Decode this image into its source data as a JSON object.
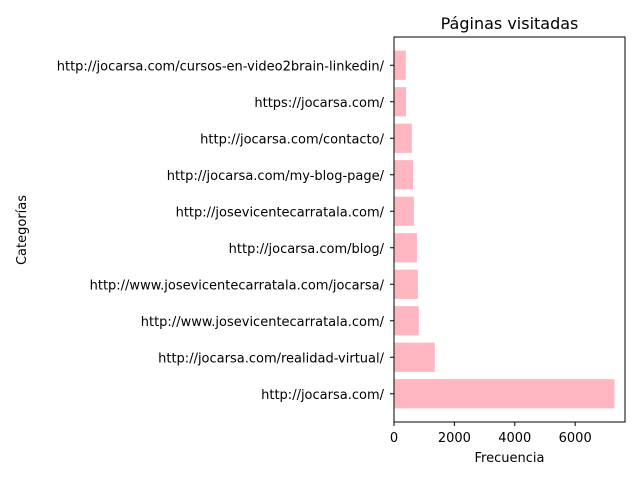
{
  "chart_data": {
    "type": "bar",
    "orientation": "horizontal",
    "title": "Páginas visitadas",
    "xlabel": "Frecuencia",
    "ylabel": "Categorías",
    "categories": [
      "http://jocarsa.com/",
      "http://jocarsa.com/realidad-virtual/",
      "http://www.josevicentecarratala.com/",
      "http://www.josevicentecarratala.com/jocarsa/",
      "http://jocarsa.com/blog/",
      "http://josevicentecarratala.com/",
      "http://jocarsa.com/my-blog-page/",
      "http://jocarsa.com/contacto/",
      "https://jocarsa.com/",
      "http://jocarsa.com/cursos-en-video2brain-linkedin/"
    ],
    "values": [
      7300,
      1350,
      820,
      790,
      760,
      660,
      630,
      590,
      400,
      390
    ],
    "xlim": [
      0,
      7650
    ],
    "xticks": [
      0,
      2000,
      4000,
      6000
    ],
    "xtick_labels": [
      "0",
      "2000",
      "4000",
      "6000"
    ],
    "grid": false,
    "bar_color": "#ffb6c1"
  }
}
